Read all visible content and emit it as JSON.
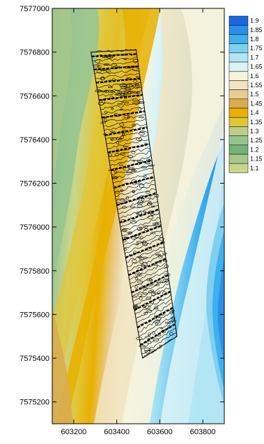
{
  "chart_data": {
    "type": "heatmap",
    "title": "",
    "xlabel": "",
    "ylabel": "",
    "xlim": [
      603100,
      603900
    ],
    "ylim": [
      7575100,
      7577000
    ],
    "x_ticks": [
      "603200",
      "603400",
      "603600",
      "603800"
    ],
    "y_ticks": [
      "7577000",
      "7576800",
      "7576600",
      "7576400",
      "7576200",
      "7576000",
      "7575800",
      "7575600",
      "7575400",
      "7575200"
    ],
    "legend": {
      "placement": "right",
      "levels": [
        {
          "label": "1.9",
          "color": "#1a66e0"
        },
        {
          "label": "1.85",
          "color": "#2a8fe8"
        },
        {
          "label": "1.8",
          "color": "#3fb0ec"
        },
        {
          "label": "1.75",
          "color": "#7fd0f0"
        },
        {
          "label": "1.7",
          "color": "#b2e6f4"
        },
        {
          "label": "1.65",
          "color": "#daf4f6"
        },
        {
          "label": "1.6",
          "color": "#f6f4de"
        },
        {
          "label": "1.55",
          "color": "#f2e4c0"
        },
        {
          "label": "1.5",
          "color": "#e8cd92"
        },
        {
          "label": "1.45",
          "color": "#d8ad52"
        },
        {
          "label": "1.4",
          "color": "#e8b000"
        },
        {
          "label": "1.35",
          "color": "#e2c638"
        },
        {
          "label": "1.3",
          "color": "#bccf86"
        },
        {
          "label": "1.25",
          "color": "#96c490"
        },
        {
          "label": "1.2",
          "color": "#74b474"
        },
        {
          "label": "1.15",
          "color": "#a6c68c"
        },
        {
          "label": "1.1",
          "color": "#c8d68c"
        }
      ]
    },
    "survey_strip": {
      "corners": [
        [
          603280,
          7576800
        ],
        [
          603490,
          7576810
        ],
        [
          603680,
          7575500
        ],
        [
          603520,
          7575400
        ]
      ],
      "transects_y": [
        7576780,
        7576720,
        7576660,
        7576580,
        7576500,
        7576420,
        7576340,
        7576260,
        7576180,
        7576100,
        7576020,
        7575940,
        7575860,
        7575780,
        7575700,
        7575620,
        7575540,
        7575460
      ]
    }
  }
}
